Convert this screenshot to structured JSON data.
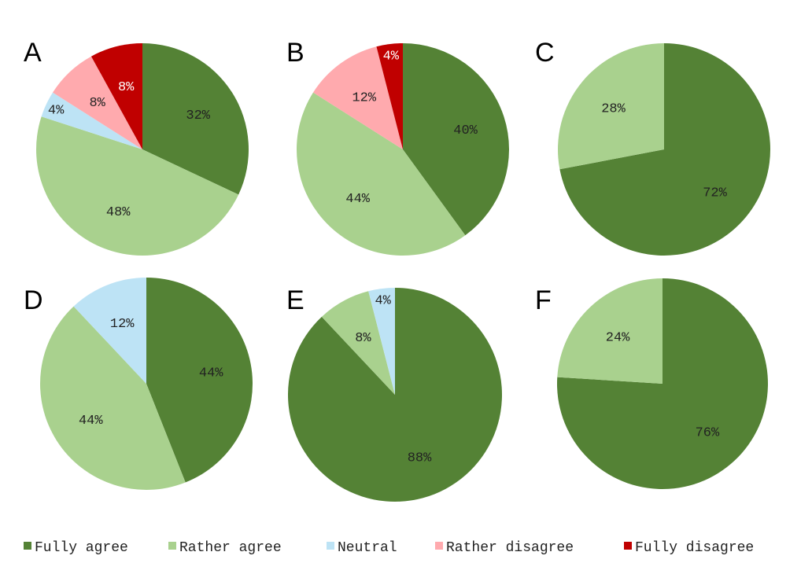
{
  "legend": [
    {
      "key": "fully_agree",
      "label": "Fully agree",
      "color": "#548235"
    },
    {
      "key": "rather_agree",
      "label": "Rather agree",
      "color": "#A9D18E"
    },
    {
      "key": "neutral",
      "label": "Neutral",
      "color": "#BDE3F5"
    },
    {
      "key": "rather_disagree",
      "label": "Rather disagree",
      "color": "#FFAAAE"
    },
    {
      "key": "fully_disagree",
      "label": "Fully disagree",
      "color": "#C00000"
    }
  ],
  "chart_data": [
    {
      "type": "pie",
      "panel": "A",
      "series": [
        {
          "name": "Fully agree",
          "value": 32,
          "label": "32%"
        },
        {
          "name": "Rather agree",
          "value": 48,
          "label": "48%"
        },
        {
          "name": "Neutral",
          "value": 4,
          "label": "4%"
        },
        {
          "name": "Rather disagree",
          "value": 8,
          "label": "8%"
        },
        {
          "name": "Fully disagree",
          "value": 8,
          "label": "8%"
        }
      ]
    },
    {
      "type": "pie",
      "panel": "B",
      "series": [
        {
          "name": "Fully agree",
          "value": 40,
          "label": "40%"
        },
        {
          "name": "Rather agree",
          "value": 44,
          "label": "44%"
        },
        {
          "name": "Rather disagree",
          "value": 12,
          "label": "12%"
        },
        {
          "name": "Fully disagree",
          "value": 4,
          "label": "4%"
        }
      ]
    },
    {
      "type": "pie",
      "panel": "C",
      "series": [
        {
          "name": "Fully agree",
          "value": 72,
          "label": "72%"
        },
        {
          "name": "Rather agree",
          "value": 28,
          "label": "28%"
        }
      ]
    },
    {
      "type": "pie",
      "panel": "D",
      "series": [
        {
          "name": "Fully agree",
          "value": 44,
          "label": "44%"
        },
        {
          "name": "Rather agree",
          "value": 44,
          "label": "44%"
        },
        {
          "name": "Neutral",
          "value": 12,
          "label": "12%"
        }
      ]
    },
    {
      "type": "pie",
      "panel": "E",
      "series": [
        {
          "name": "Fully agree",
          "value": 88,
          "label": "88%"
        },
        {
          "name": "Rather agree",
          "value": 8,
          "label": "8%"
        },
        {
          "name": "Neutral",
          "value": 4,
          "label": "4%"
        }
      ]
    },
    {
      "type": "pie",
      "panel": "F",
      "series": [
        {
          "name": "Fully agree",
          "value": 76,
          "label": "76%"
        },
        {
          "name": "Rather agree",
          "value": 24,
          "label": "24%"
        }
      ]
    }
  ]
}
